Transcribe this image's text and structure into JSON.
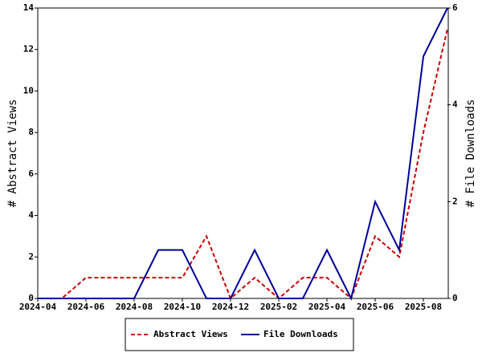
{
  "chart_data": {
    "type": "line",
    "categories": [
      "2024-04",
      null,
      "2024-06",
      null,
      "2024-08",
      null,
      "2024-10",
      null,
      "2024-12",
      null,
      "2025-02",
      null,
      "2025-04",
      null,
      "2025-06",
      null,
      "2025-08",
      null
    ],
    "y_label": "# Abstract Views",
    "y2_label": "# File Downloads",
    "ylim": [
      0,
      14
    ],
    "yticks": [
      0,
      2,
      4,
      6,
      8,
      10,
      12,
      14
    ],
    "y2lim": [
      0,
      6
    ],
    "y2ticks": [
      0,
      2,
      4,
      6
    ],
    "legend": "bottom",
    "series": [
      {
        "name": "Abstract Views",
        "color": "#cc0000",
        "dashed": true,
        "values": [
          0,
          0,
          1,
          1,
          1,
          1,
          1,
          3,
          0,
          1,
          0,
          1,
          1,
          0,
          3,
          2,
          8,
          13
        ]
      },
      {
        "name": "File Downloads",
        "color": "#000099",
        "dashed": false,
        "axis": "y2",
        "values": [
          0,
          0,
          0,
          0,
          0,
          1,
          1,
          0,
          0,
          1,
          0,
          0,
          1,
          0,
          2,
          1,
          5,
          6
        ]
      }
    ]
  }
}
